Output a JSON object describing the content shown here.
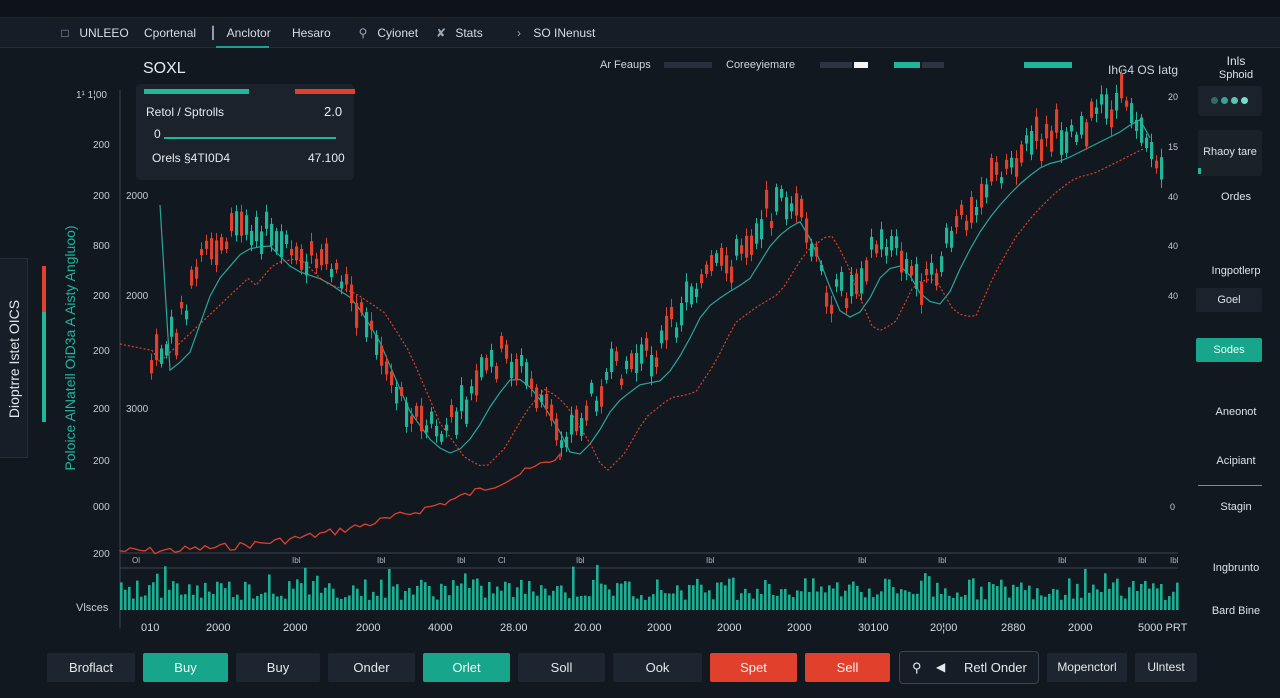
{
  "menubar": {
    "items": [
      {
        "label": "UNLEEO",
        "icon": "square-icon"
      },
      {
        "label": "Cportenal",
        "icon": ""
      },
      {
        "label": "Anclotor",
        "icon": "pin-icon"
      },
      {
        "label": "Hesaro",
        "icon": ""
      },
      {
        "label": "Cyionet",
        "icon": "search-icon"
      },
      {
        "label": "Stats",
        "icon": "tools-icon"
      },
      {
        "label": "SO INenust",
        "icon": "chevron-icon"
      }
    ]
  },
  "symbol": "SOXL",
  "legend": {
    "item1": "Ar Feaups",
    "item2": "Coreeyiemare"
  },
  "topright_readout": "IhG4 OS Iatg",
  "tool_panel": {
    "row1_label": "Retol / Sptrolls",
    "row1_value": "2.0",
    "row2_label": "0",
    "row3_label": "Orels §4TI0D4",
    "row3_value": "47.100"
  },
  "left_axis": [
    "1¹ 1¦00",
    "200",
    "200",
    "800",
    "200",
    "200",
    "200",
    "200",
    "000",
    "200"
  ],
  "chart_axis_labels": [
    "2000",
    "2000",
    "3000"
  ],
  "right_axis": [
    "20",
    "15",
    "40",
    "40",
    "40",
    "0"
  ],
  "x_axis": [
    "010",
    "2000",
    "2000",
    "2000",
    "4000",
    "28.00",
    "20.00",
    "2000",
    "2000",
    "2000",
    "30100",
    "20¦00",
    "2880",
    "2000",
    "5000 PRT"
  ],
  "x_ticks": [
    "Ol",
    "Ibl",
    "Ibl",
    "Ibl",
    "Cl",
    "Ibl",
    "Ibl",
    "Ibl",
    "Ibl",
    "Ibl",
    "Ibl",
    "Ibl"
  ],
  "volume_label": "Vlsces",
  "left_side_tab": "Dioptrre Istet OICS",
  "left_side_teal": "Poloice AlNatell OiD3a A Aisty Angluoo)",
  "right_panel": {
    "title1": "Inls",
    "title2": "Sphoid",
    "item_rates": "Rhaoy tare",
    "item_ordes": "Ordes",
    "item_ingp": "Ingpotlerp",
    "btn_goal": "Goel",
    "btn_sodes": "Sodes",
    "item_aneol": "Aneonot",
    "item_acipt": "Acipiant",
    "item_stgn": "Stagin",
    "item_ingbr": "Ingbrunto",
    "item_bard": "Bard Bine"
  },
  "bottom_buttons": {
    "b1": "Broflact",
    "b2": "Buy",
    "b3": "Buy",
    "b4": "Onder",
    "b5": "Orlet",
    "b6": "Soll",
    "b7": "Ook",
    "b8": "Spet",
    "b9": "Sell",
    "b10": "Retl Onder",
    "b11": "Mopenctorl",
    "b12": "Ulntest"
  },
  "colors": {
    "up": "#1fb69a",
    "down": "#e0402c",
    "bg": "#121820",
    "panel": "#1b222c",
    "ma": "#2aa69a"
  }
}
